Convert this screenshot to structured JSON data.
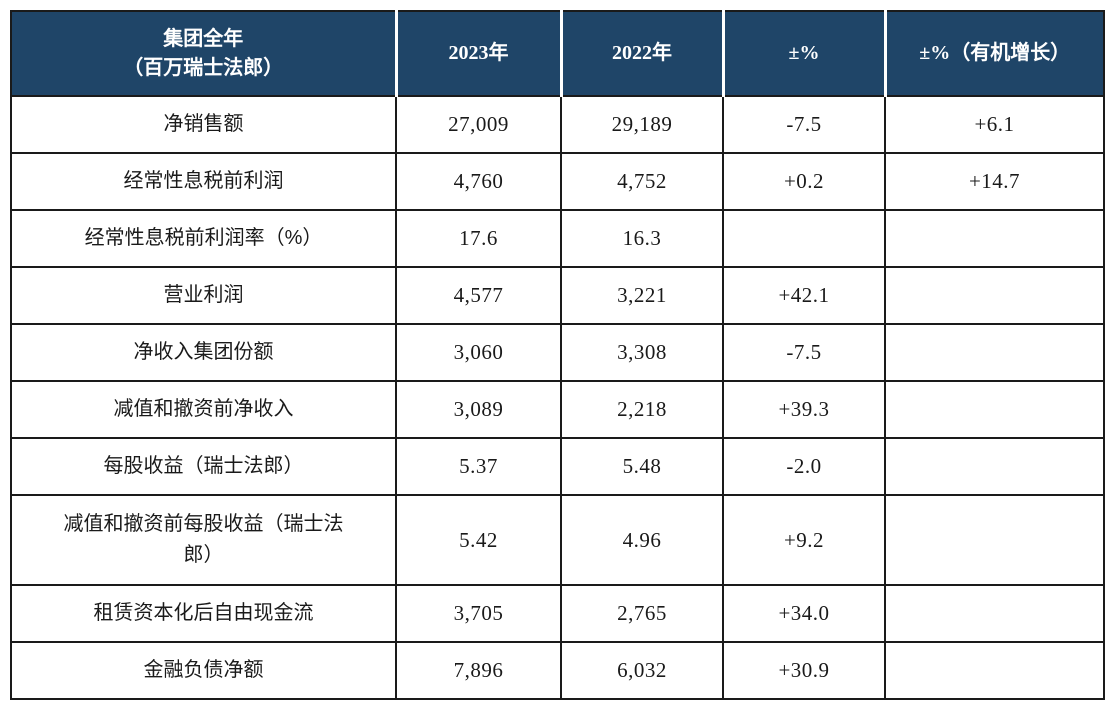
{
  "table": {
    "header": {
      "title_line1": "集团全年",
      "title_line2": "（百万瑞士法郎）",
      "col_2023": "2023年",
      "col_2022": "2022年",
      "col_change": "±%",
      "col_change_organic": "±%（有机增长）"
    },
    "rows": [
      {
        "label": "净销售额",
        "v2023": "27,009",
        "v2022": "29,189",
        "change": "-7.5",
        "organic": "+6.1"
      },
      {
        "label": "经常性息税前利润",
        "v2023": "4,760",
        "v2022": "4,752",
        "change": "+0.2",
        "organic": "+14.7"
      },
      {
        "label": "经常性息税前利润率（%）",
        "v2023": "17.6",
        "v2022": "16.3",
        "change": "",
        "organic": ""
      },
      {
        "label": "营业利润",
        "v2023": "4,577",
        "v2022": "3,221",
        "change": "+42.1",
        "organic": ""
      },
      {
        "label": "净收入集团份额",
        "v2023": "3,060",
        "v2022": "3,308",
        "change": "-7.5",
        "organic": ""
      },
      {
        "label": "减值和撤资前净收入",
        "v2023": "3,089",
        "v2022": "2,218",
        "change": "+39.3",
        "organic": ""
      },
      {
        "label": "每股收益（瑞士法郎）",
        "v2023": "5.37",
        "v2022": "5.48",
        "change": "-2.0",
        "organic": ""
      },
      {
        "label": "减值和撤资前每股收益（瑞士法郎）",
        "v2023": "5.42",
        "v2022": "4.96",
        "change": "+9.2",
        "organic": ""
      },
      {
        "label": "租赁资本化后自由现金流",
        "v2023": "3,705",
        "v2022": "2,765",
        "change": "+34.0",
        "organic": ""
      },
      {
        "label": "金融负债净额",
        "v2023": "7,896",
        "v2022": "6,032",
        "change": "+30.9",
        "organic": ""
      }
    ],
    "colors": {
      "header_bg": "#1f4568",
      "header_text": "#ffffff",
      "border": "#1a1a1a",
      "body_text": "#1a1a1a"
    }
  }
}
